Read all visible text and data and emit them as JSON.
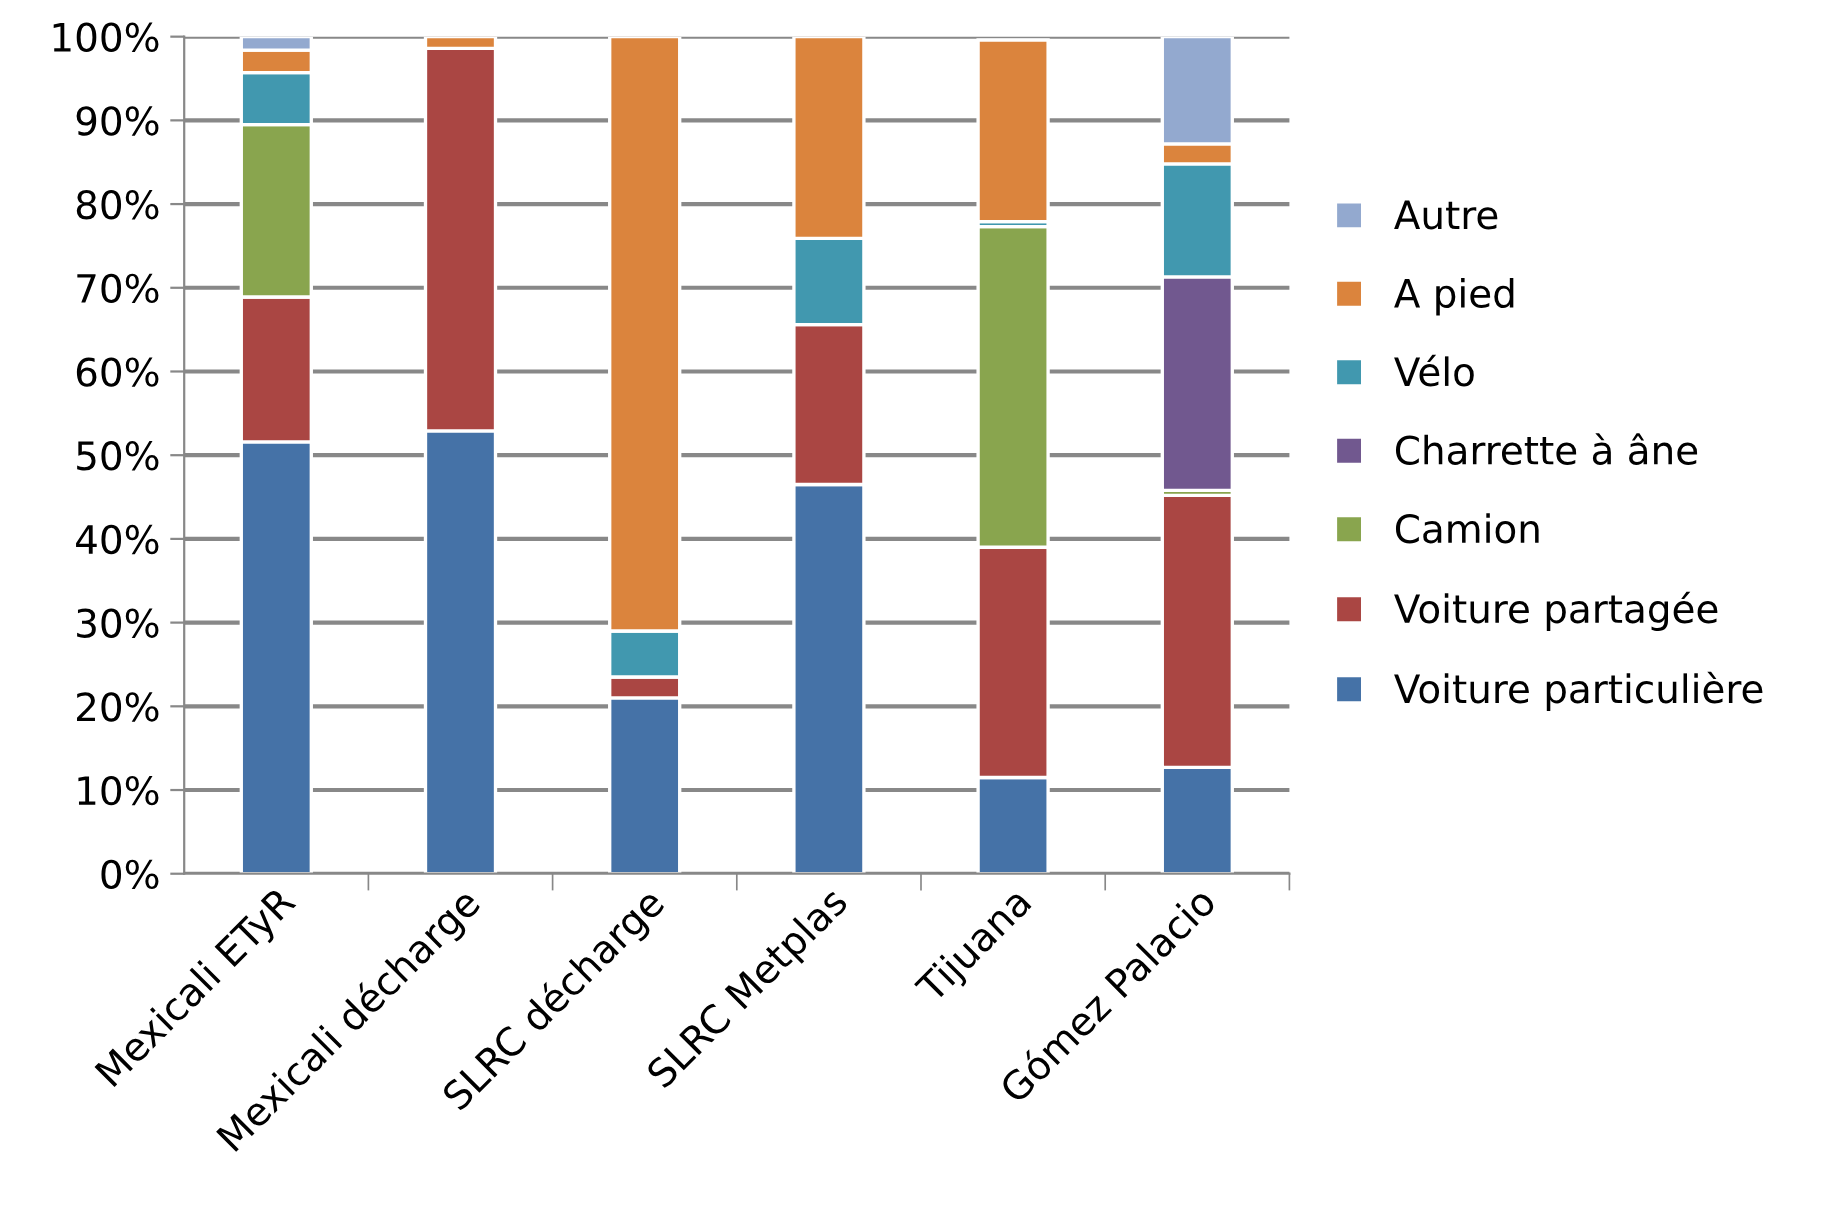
{
  "chart_data": {
    "type": "bar",
    "stacked": true,
    "categories": [
      "Mexicali ETyR",
      "Mexicali décharge",
      "SLRC décharge",
      "SLRC Metplas",
      "Tijuana",
      "Gómez Palacio"
    ],
    "series": [
      {
        "name": "Voiture particulière",
        "color": "#4572a7",
        "values": [
          51.6,
          52.9,
          21.0,
          46.5,
          11.5,
          12.7
        ]
      },
      {
        "name": "Voiture partagée",
        "color": "#aa4643",
        "values": [
          17.3,
          45.7,
          2.5,
          19.1,
          27.5,
          32.5
        ]
      },
      {
        "name": "Camion",
        "color": "#89a54e",
        "values": [
          20.6,
          null,
          null,
          null,
          38.3,
          0.6
        ]
      },
      {
        "name": "Charrette à âne",
        "color": "#71588f",
        "values": [
          null,
          null,
          null,
          null,
          null,
          25.5
        ]
      },
      {
        "name": "Vélo",
        "color": "#4198af",
        "values": [
          6.2,
          null,
          5.5,
          10.3,
          0.6,
          13.5
        ]
      },
      {
        "name": "A pied",
        "color": "#db843d",
        "values": [
          2.7,
          1.4,
          71.0,
          24.1,
          21.7,
          2.4
        ]
      },
      {
        "name": "Autre",
        "color": "#93a9cf",
        "values": [
          1.6,
          null,
          null,
          null,
          null,
          12.8
        ]
      }
    ],
    "ylim": [
      0,
      100
    ],
    "yticks": [
      {
        "value": 0,
        "label": "0%"
      },
      {
        "value": 10,
        "label": "10%"
      },
      {
        "value": 20,
        "label": "20%"
      },
      {
        "value": 30,
        "label": "30%"
      },
      {
        "value": 40,
        "label": "40%"
      },
      {
        "value": 50,
        "label": "50%"
      },
      {
        "value": 60,
        "label": "60%"
      },
      {
        "value": 70,
        "label": "70%"
      },
      {
        "value": 80,
        "label": "80%"
      },
      {
        "value": 90,
        "label": "90%"
      },
      {
        "value": 100,
        "label": "100%"
      }
    ],
    "grid": "y",
    "legend": "right"
  }
}
